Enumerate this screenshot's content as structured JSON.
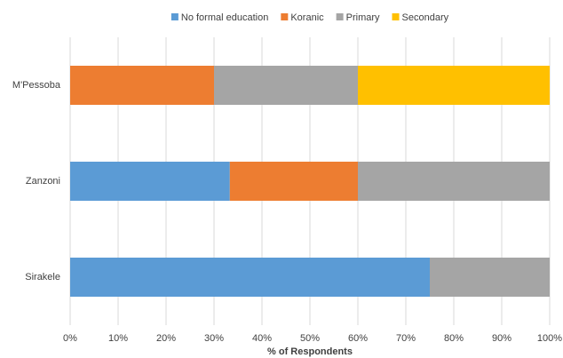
{
  "chart_data": {
    "type": "stacked-barh",
    "categories": [
      "M'Pessoba",
      "Zanzoni",
      "Sirakele"
    ],
    "series": [
      {
        "name": "No formal education",
        "color": "#5b9bd5",
        "values": [
          0,
          33.3,
          75
        ]
      },
      {
        "name": "Koranic",
        "color": "#ed7d31",
        "values": [
          30,
          26.7,
          0
        ]
      },
      {
        "name": "Primary",
        "color": "#a5a5a5",
        "values": [
          30,
          40,
          25
        ]
      },
      {
        "name": "Secondary",
        "color": "#ffc000",
        "values": [
          40,
          0,
          0
        ]
      }
    ],
    "xlim": [
      0,
      100
    ],
    "xticks": [
      {
        "value": 0,
        "label": "0%"
      },
      {
        "value": 10,
        "label": "10%"
      },
      {
        "value": 20,
        "label": "20%"
      },
      {
        "value": 30,
        "label": "30%"
      },
      {
        "value": 40,
        "label": "40%"
      },
      {
        "value": 50,
        "label": "50%"
      },
      {
        "value": 60,
        "label": "60%"
      },
      {
        "value": 70,
        "label": "70%"
      },
      {
        "value": 80,
        "label": "80%"
      },
      {
        "value": 90,
        "label": "90%"
      },
      {
        "value": 100,
        "label": "100%"
      }
    ],
    "xlabel": "% of Respondents",
    "grid": true,
    "legend": "top"
  }
}
